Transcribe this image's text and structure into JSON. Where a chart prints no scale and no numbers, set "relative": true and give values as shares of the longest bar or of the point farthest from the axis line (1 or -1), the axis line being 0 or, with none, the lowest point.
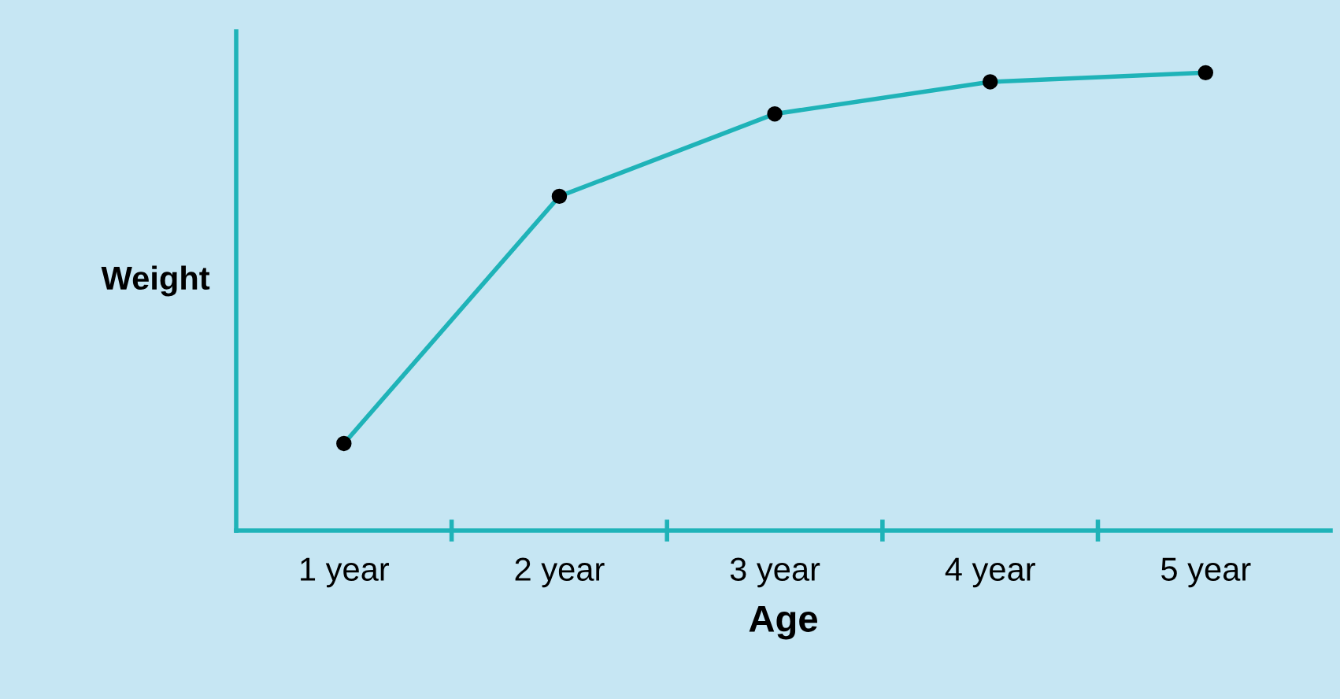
{
  "chart_data": {
    "type": "line",
    "xlabel": "Age",
    "ylabel": "Weight",
    "relative": true,
    "categories": [
      "1 year",
      "2 year",
      "3 year",
      "4 year",
      "5 year"
    ],
    "series": [
      {
        "color": "#1fb3b8",
        "values": [
          0.19,
          0.73,
          0.91,
          0.98,
          1.0
        ]
      }
    ],
    "marker": "circle",
    "line_style": "solid",
    "grid": false,
    "legend": false
  }
}
